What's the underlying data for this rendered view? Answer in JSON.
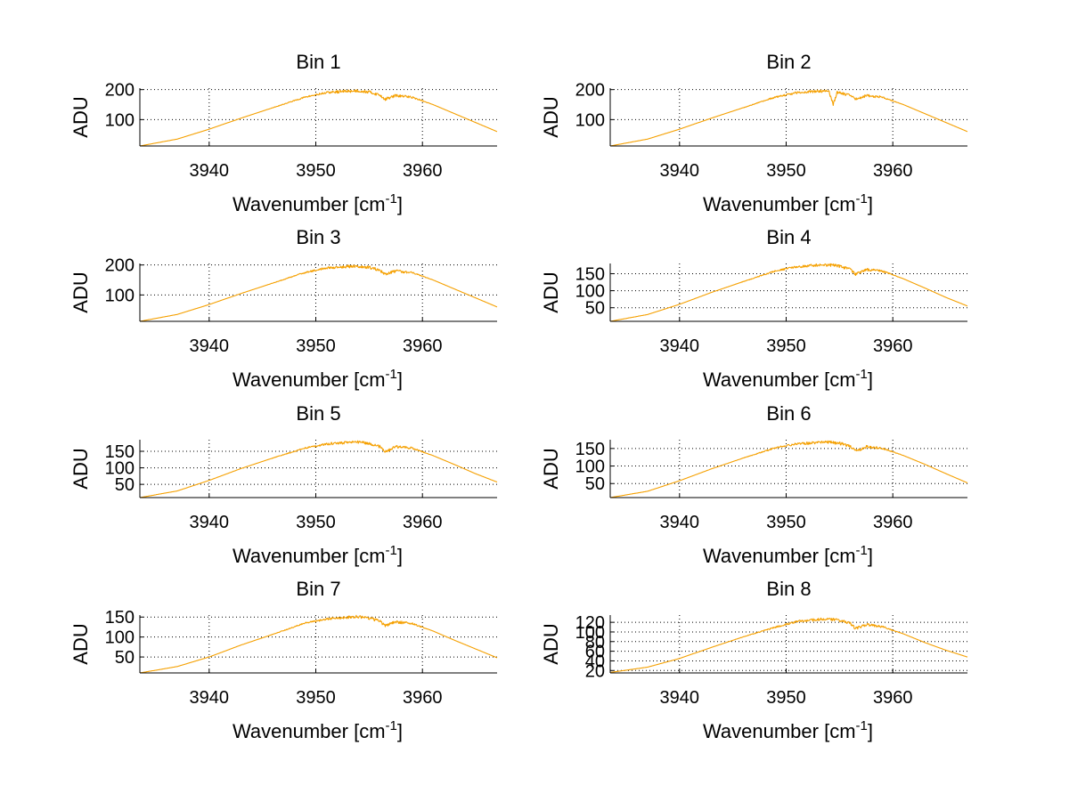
{
  "colors": {
    "series": "#f5a000",
    "grid": "#000000",
    "axis": "#000000",
    "background": "#ffffff"
  },
  "chart_data": [
    {
      "type": "line",
      "title": "Bin 1",
      "xlabel": "Wavenumber [cm",
      "xlabel_sup": "-1",
      "xlabel_end": "]",
      "ylabel": "ADU",
      "xlim": [
        3933.5,
        3967
      ],
      "ylim": [
        12,
        205
      ],
      "x_ticks": [
        3940,
        3950,
        3960
      ],
      "y_ticks": [
        100,
        200
      ],
      "grid": true,
      "series": [
        {
          "x": [
            3933.5,
            3937,
            3940,
            3943,
            3946,
            3949,
            3951,
            3953,
            3954,
            3955,
            3956,
            3956.5,
            3957.5,
            3959,
            3961,
            3963,
            3965,
            3967
          ],
          "y": [
            12,
            35,
            68,
            105,
            140,
            175,
            190,
            195,
            196,
            192,
            182,
            168,
            180,
            175,
            150,
            120,
            90,
            60
          ]
        }
      ]
    },
    {
      "type": "line",
      "title": "Bin 2",
      "xlabel": "Wavenumber [cm",
      "xlabel_sup": "-1",
      "xlabel_end": "]",
      "ylabel": "ADU",
      "xlim": [
        3933.5,
        3967
      ],
      "ylim": [
        12,
        205
      ],
      "x_ticks": [
        3940,
        3950,
        3960
      ],
      "y_ticks": [
        100,
        200
      ],
      "grid": true,
      "series": [
        {
          "x": [
            3933.5,
            3937,
            3940,
            3943,
            3946,
            3949,
            3951,
            3953,
            3954,
            3954.4,
            3954.8,
            3956,
            3956.5,
            3957.5,
            3959,
            3961,
            3963,
            3965,
            3967
          ],
          "y": [
            12,
            35,
            68,
            105,
            140,
            175,
            190,
            195,
            196,
            150,
            192,
            180,
            168,
            180,
            175,
            150,
            120,
            90,
            60
          ]
        }
      ]
    },
    {
      "type": "line",
      "title": "Bin 3",
      "xlabel": "Wavenumber [cm",
      "xlabel_sup": "-1",
      "xlabel_end": "]",
      "ylabel": "ADU",
      "xlim": [
        3933.5,
        3967
      ],
      "ylim": [
        12,
        205
      ],
      "x_ticks": [
        3940,
        3950,
        3960
      ],
      "y_ticks": [
        100,
        200
      ],
      "grid": true,
      "series": [
        {
          "x": [
            3933.5,
            3937,
            3940,
            3943,
            3946,
            3949,
            3951,
            3953,
            3954,
            3955,
            3956,
            3956.5,
            3957.5,
            3959,
            3961,
            3963,
            3965,
            3967
          ],
          "y": [
            12,
            35,
            68,
            105,
            140,
            175,
            190,
            195,
            196,
            192,
            182,
            168,
            180,
            175,
            150,
            120,
            90,
            60
          ]
        }
      ]
    },
    {
      "type": "line",
      "title": "Bin 4",
      "xlabel": "Wavenumber [cm",
      "xlabel_sup": "-1",
      "xlabel_end": "]",
      "ylabel": "ADU",
      "xlim": [
        3933.5,
        3967
      ],
      "ylim": [
        10,
        180
      ],
      "x_ticks": [
        3940,
        3950,
        3960
      ],
      "y_ticks": [
        50,
        100,
        150
      ],
      "grid": true,
      "series": [
        {
          "x": [
            3933.5,
            3937,
            3940,
            3943,
            3946,
            3949,
            3951,
            3953,
            3954,
            3955,
            3956,
            3956.5,
            3957.5,
            3959,
            3961,
            3963,
            3965,
            3967
          ],
          "y": [
            10,
            30,
            60,
            95,
            127,
            158,
            170,
            175,
            176,
            172,
            163,
            148,
            162,
            158,
            135,
            108,
            80,
            55
          ]
        }
      ]
    },
    {
      "type": "line",
      "title": "Bin 5",
      "xlabel": "Wavenumber [cm",
      "xlabel_sup": "-1",
      "xlabel_end": "]",
      "ylabel": "ADU",
      "xlim": [
        3933.5,
        3967
      ],
      "ylim": [
        10,
        185
      ],
      "x_ticks": [
        3940,
        3950,
        3960
      ],
      "y_ticks": [
        50,
        100,
        150
      ],
      "grid": true,
      "series": [
        {
          "x": [
            3933.5,
            3937,
            3940,
            3943,
            3946,
            3949,
            3951,
            3953,
            3954,
            3955,
            3956,
            3956.5,
            3957.5,
            3959,
            3961,
            3963,
            3965,
            3967
          ],
          "y": [
            10,
            30,
            62,
            98,
            130,
            160,
            172,
            177,
            178,
            173,
            164,
            148,
            164,
            160,
            137,
            110,
            82,
            57
          ]
        }
      ]
    },
    {
      "type": "line",
      "title": "Bin 6",
      "xlabel": "Wavenumber [cm",
      "xlabel_sup": "-1",
      "xlabel_end": "]",
      "ylabel": "ADU",
      "xlim": [
        3933.5,
        3967
      ],
      "ylim": [
        10,
        175
      ],
      "x_ticks": [
        3940,
        3950,
        3960
      ],
      "y_ticks": [
        50,
        100,
        150
      ],
      "grid": true,
      "series": [
        {
          "x": [
            3933.5,
            3937,
            3940,
            3943,
            3946,
            3949,
            3951,
            3953,
            3954,
            3955,
            3956,
            3956.5,
            3957.5,
            3959,
            3961,
            3963,
            3965,
            3967
          ],
          "y": [
            10,
            28,
            58,
            92,
            123,
            152,
            163,
            167,
            168,
            165,
            157,
            142,
            155,
            151,
            130,
            105,
            78,
            52
          ]
        }
      ]
    },
    {
      "type": "line",
      "title": "Bin 7",
      "xlabel": "Wavenumber [cm",
      "xlabel_sup": "-1",
      "xlabel_end": "]",
      "ylabel": "ADU",
      "xlim": [
        3933.5,
        3967
      ],
      "ylim": [
        10,
        155
      ],
      "x_ticks": [
        3940,
        3950,
        3960
      ],
      "y_ticks": [
        50,
        100,
        150
      ],
      "grid": true,
      "series": [
        {
          "x": [
            3933.5,
            3937,
            3940,
            3943,
            3946,
            3949,
            3951,
            3953,
            3954,
            3955,
            3956,
            3956.5,
            3957.5,
            3959,
            3961,
            3963,
            3965,
            3967
          ],
          "y": [
            10,
            26,
            50,
            80,
            107,
            135,
            145,
            150,
            151,
            148,
            140,
            128,
            138,
            134,
            115,
            92,
            70,
            48
          ]
        }
      ]
    },
    {
      "type": "line",
      "title": "Bin 8",
      "xlabel": "Wavenumber [cm",
      "xlabel_sup": "-1",
      "xlabel_end": "]",
      "ylabel": "ADU",
      "xlim": [
        3933.5,
        3967
      ],
      "ylim": [
        15,
        135
      ],
      "x_ticks": [
        3940,
        3950,
        3960
      ],
      "y_ticks": [
        20,
        40,
        60,
        80,
        100,
        120
      ],
      "y_tick_labels": [
        "20",
        "40",
        "60",
        "80",
        "100",
        "120"
      ],
      "grid": true,
      "series": [
        {
          "x": [
            3933.5,
            3937,
            3940,
            3943,
            3946,
            3949,
            3951,
            3953,
            3954,
            3955,
            3956,
            3956.5,
            3957.5,
            3959,
            3961,
            3963,
            3965,
            3967
          ],
          "y": [
            16,
            27,
            45,
            68,
            90,
            110,
            122,
            126,
            127,
            124,
            118,
            107,
            115,
            111,
            96,
            78,
            62,
            48
          ]
        }
      ]
    }
  ]
}
